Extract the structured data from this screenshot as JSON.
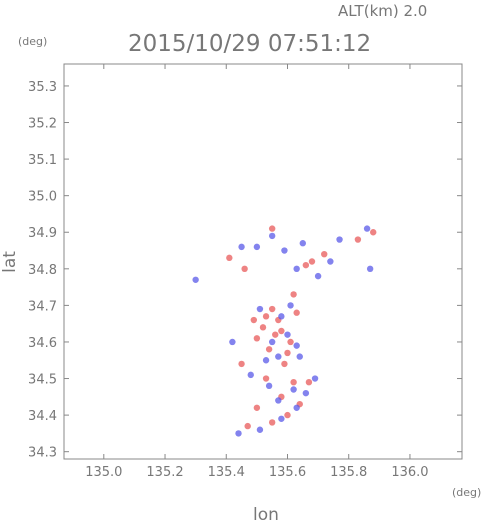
{
  "header": {
    "altitude_label": "ALT(km) 2.0",
    "timestamp": "2015/10/29 07:51:12",
    "y_unit": "(deg)",
    "x_unit": "(deg)"
  },
  "colors": {
    "positive": "#e85a5a",
    "negative": "#5a5ae8",
    "axis": "#888888",
    "text": "#777777"
  },
  "chart_data": {
    "type": "scatter",
    "title": "2015/10/29 07:51:12",
    "xlabel": "lon",
    "ylabel": "lat",
    "xlim": [
      134.87,
      136.17
    ],
    "ylim": [
      34.28,
      35.36
    ],
    "x_ticks": [
      "135.0",
      "135.2",
      "135.4",
      "135.6",
      "135.8",
      "136.0"
    ],
    "y_ticks": [
      "34.3",
      "34.4",
      "34.5",
      "34.6",
      "34.7",
      "34.8",
      "34.9",
      "35.0",
      "35.1",
      "35.2",
      "35.3"
    ],
    "grid": false,
    "series": [
      {
        "color": "#e85a5a",
        "points": [
          [
            135.53,
            34.67
          ],
          [
            135.55,
            34.69
          ],
          [
            135.57,
            34.66
          ],
          [
            135.52,
            34.64
          ],
          [
            135.58,
            34.63
          ],
          [
            135.5,
            34.61
          ],
          [
            135.61,
            34.6
          ],
          [
            135.54,
            34.58
          ],
          [
            135.6,
            34.57
          ],
          [
            135.49,
            34.66
          ],
          [
            135.63,
            34.68
          ],
          [
            135.68,
            34.82
          ],
          [
            135.66,
            34.81
          ],
          [
            135.72,
            34.84
          ],
          [
            135.62,
            34.49
          ],
          [
            135.58,
            34.45
          ],
          [
            135.5,
            34.42
          ],
          [
            135.55,
            34.38
          ],
          [
            135.47,
            34.37
          ],
          [
            135.6,
            34.4
          ],
          [
            135.64,
            34.43
          ],
          [
            135.67,
            34.49
          ],
          [
            135.53,
            34.5
          ],
          [
            135.45,
            34.54
          ],
          [
            135.88,
            34.9
          ],
          [
            135.83,
            34.88
          ],
          [
            135.41,
            34.83
          ],
          [
            135.46,
            34.8
          ],
          [
            135.55,
            34.91
          ],
          [
            135.62,
            34.73
          ],
          [
            135.56,
            34.62
          ],
          [
            135.59,
            34.54
          ]
        ]
      },
      {
        "color": "#5a5ae8",
        "points": [
          [
            135.6,
            34.62
          ],
          [
            135.63,
            34.59
          ],
          [
            135.55,
            34.6
          ],
          [
            135.58,
            34.67
          ],
          [
            135.61,
            34.7
          ],
          [
            135.51,
            34.69
          ],
          [
            135.57,
            34.56
          ],
          [
            135.64,
            34.56
          ],
          [
            135.53,
            34.55
          ],
          [
            135.59,
            34.85
          ],
          [
            135.65,
            34.87
          ],
          [
            135.74,
            34.82
          ],
          [
            135.7,
            34.78
          ],
          [
            135.63,
            34.8
          ],
          [
            135.55,
            34.89
          ],
          [
            135.5,
            34.86
          ],
          [
            135.45,
            34.86
          ],
          [
            135.62,
            34.47
          ],
          [
            135.66,
            34.46
          ],
          [
            135.57,
            34.44
          ],
          [
            135.54,
            34.48
          ],
          [
            135.63,
            34.42
          ],
          [
            135.58,
            34.39
          ],
          [
            135.51,
            34.36
          ],
          [
            135.44,
            34.35
          ],
          [
            135.3,
            34.77
          ],
          [
            135.87,
            34.8
          ],
          [
            135.86,
            34.91
          ],
          [
            135.77,
            34.88
          ],
          [
            135.48,
            34.51
          ],
          [
            135.69,
            34.5
          ],
          [
            135.42,
            34.6
          ]
        ]
      }
    ]
  }
}
